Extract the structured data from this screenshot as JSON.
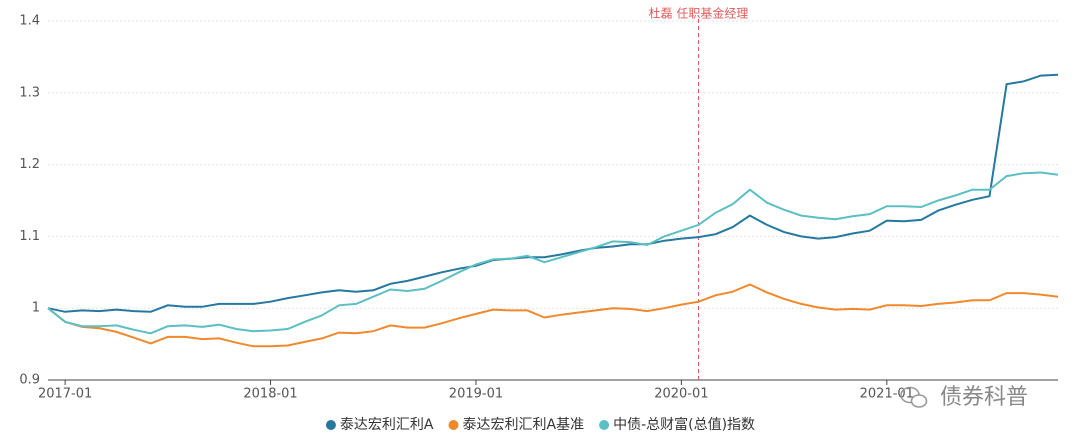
{
  "chart_data": {
    "type": "line",
    "categories": [
      null,
      "2017-01",
      null,
      null,
      null,
      null,
      null,
      null,
      null,
      null,
      null,
      null,
      null,
      "2018-01",
      null,
      null,
      null,
      null,
      null,
      null,
      null,
      null,
      null,
      null,
      null,
      "2019-01",
      null,
      null,
      null,
      null,
      null,
      null,
      null,
      null,
      null,
      null,
      null,
      "2020-01",
      null,
      null,
      null,
      null,
      null,
      null,
      null,
      null,
      null,
      null,
      null,
      "2021-01",
      null,
      null,
      null,
      null,
      null,
      null,
      null,
      null,
      null,
      null
    ],
    "series": [
      {
        "name": "泰达宏利汇利A",
        "color": "#25789f",
        "values": [
          1.0,
          0.995,
          0.997,
          0.996,
          0.998,
          0.996,
          0.995,
          1.004,
          1.002,
          1.002,
          1.006,
          1.006,
          1.006,
          1.009,
          1.014,
          1.018,
          1.022,
          1.025,
          1.023,
          1.025,
          1.034,
          1.038,
          1.044,
          1.05,
          1.055,
          1.059,
          1.067,
          1.069,
          1.071,
          1.071,
          1.075,
          1.08,
          1.084,
          1.086,
          1.089,
          1.089,
          1.094,
          1.097,
          1.099,
          1.103,
          1.113,
          1.129,
          1.116,
          1.106,
          1.1,
          1.097,
          1.099,
          1.104,
          1.108,
          1.122,
          1.121,
          1.123,
          1.136,
          1.144,
          1.151,
          1.156,
          1.312,
          1.316,
          1.324,
          1.325
        ]
      },
      {
        "name": "泰达宏利汇利A基准",
        "color": "#f0892b",
        "values": [
          1.0,
          0.981,
          0.974,
          0.972,
          0.967,
          0.959,
          0.951,
          0.96,
          0.96,
          0.957,
          0.958,
          0.952,
          0.947,
          0.947,
          0.948,
          0.953,
          0.958,
          0.966,
          0.965,
          0.968,
          0.976,
          0.973,
          0.973,
          0.979,
          0.986,
          0.992,
          0.998,
          0.997,
          0.997,
          0.987,
          0.991,
          0.994,
          0.997,
          1.0,
          0.999,
          0.996,
          1.0,
          1.005,
          1.009,
          1.018,
          1.023,
          1.033,
          1.022,
          1.013,
          1.006,
          1.001,
          0.998,
          0.999,
          0.998,
          1.004,
          1.004,
          1.003,
          1.006,
          1.008,
          1.011,
          1.011,
          1.021,
          1.021,
          1.019,
          1.016
        ]
      },
      {
        "name": "中债-总财富(总值)指数",
        "color": "#5bbfc4",
        "values": [
          1.0,
          0.981,
          0.975,
          0.975,
          0.976,
          0.97,
          0.965,
          0.975,
          0.976,
          0.974,
          0.977,
          0.971,
          0.968,
          0.969,
          0.971,
          0.981,
          0.99,
          1.004,
          1.006,
          1.016,
          1.026,
          1.024,
          1.027,
          1.038,
          1.05,
          1.061,
          1.068,
          1.069,
          1.073,
          1.064,
          1.071,
          1.078,
          1.085,
          1.093,
          1.092,
          1.088,
          1.1,
          1.108,
          1.116,
          1.133,
          1.145,
          1.165,
          1.147,
          1.137,
          1.129,
          1.126,
          1.124,
          1.128,
          1.131,
          1.142,
          1.142,
          1.141,
          1.15,
          1.157,
          1.165,
          1.165,
          1.184,
          1.188,
          1.189,
          1.186
        ]
      }
    ],
    "ylim": [
      0.9,
      1.4
    ],
    "yticks": [
      0.9,
      1,
      1.1,
      1.2,
      1.3,
      1.4
    ],
    "grid": true,
    "annotation": {
      "text": "杜磊 任职基金经理",
      "category_index": 38,
      "color": "#e05a5a"
    },
    "legend": "bottom",
    "watermark": "债券科普"
  }
}
